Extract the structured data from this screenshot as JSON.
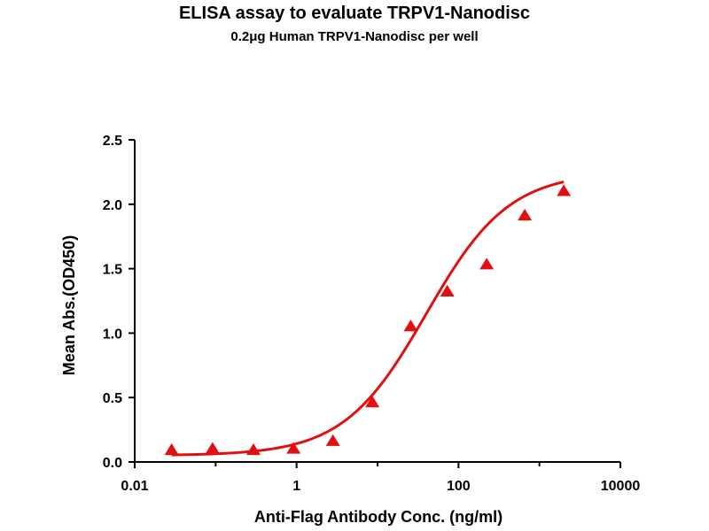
{
  "chart_data": {
    "type": "scatter",
    "title": "ELISA assay to evaluate TRPV1-Nanodisc",
    "subtitle": "0.2μg Human TRPV1-Nanodisc per well",
    "xlabel": "Anti-Flag Antibody Conc. (ng/ml)",
    "ylabel": "Mean Abs.(OD450)",
    "xscale": "log",
    "xlim": [
      0.01,
      10000
    ],
    "ylim": [
      0,
      2.5
    ],
    "x_ticks": [
      "0.01",
      "1",
      "100",
      "10000"
    ],
    "y_ticks": [
      "0.0",
      "0.5",
      "1.0",
      "1.5",
      "2.0",
      "2.5"
    ],
    "grid": false,
    "series": [
      {
        "marker": "triangle",
        "color": "#e01010",
        "x": [
          0.0286,
          0.0916,
          0.293,
          0.916,
          2.81,
          8.62,
          25.7,
          72.7,
          223,
          659,
          2000
        ],
        "y": [
          0.09,
          0.1,
          0.09,
          0.1,
          0.16,
          0.46,
          1.05,
          1.32,
          1.53,
          1.91,
          2.1
        ]
      }
    ],
    "fit_curve": {
      "model": "4PL",
      "bottom": 0.05,
      "top": 2.25,
      "ec50": 40,
      "hill": 0.85,
      "color": "#e01010"
    }
  }
}
